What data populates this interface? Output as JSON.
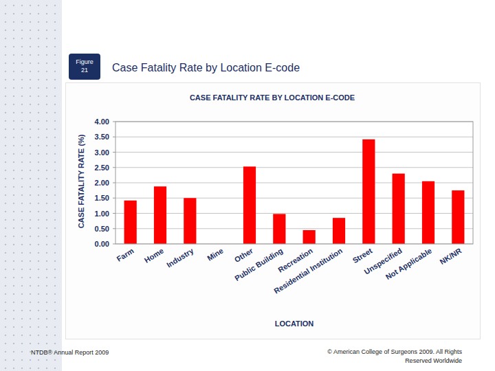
{
  "slide": {
    "figure_label": [
      "Figure",
      "21"
    ],
    "heading": "Case Fatality Rate by Location E-code",
    "footer_left": "NTDB® Annual Report 2009",
    "footer_right": "© American College of Surgeons 2009.  All Rights Reserved Worldwide"
  },
  "chart_data": {
    "type": "bar",
    "title": "CASE FATALITY RATE BY LOCATION E-CODE",
    "x_label": "LOCATION",
    "y_label": "CASE FATALITY RATE (%)",
    "categories": [
      "Farm",
      "Home",
      "Industry",
      "Mine",
      "Other",
      "Public Building",
      "Recreation",
      "Residential Institution",
      "Street",
      "Unspecified",
      "Not Applicable",
      "NK/NR"
    ],
    "values": [
      1.42,
      1.88,
      1.5,
      0,
      2.53,
      0.98,
      0.45,
      0.85,
      3.42,
      2.3,
      2.05,
      1.75
    ],
    "color": "#ff0000",
    "ylim": [
      0,
      4
    ],
    "yticks": [
      {
        "value": 0,
        "label": "0.00"
      },
      {
        "value": 0.5,
        "label": "0.50"
      },
      {
        "value": 1,
        "label": "1.00"
      },
      {
        "value": 1.5,
        "label": "1.50"
      },
      {
        "value": 2,
        "label": "2.00"
      },
      {
        "value": 2.5,
        "label": "2.50"
      },
      {
        "value": 3,
        "label": "3.00"
      },
      {
        "value": 3.5,
        "label": "3.50"
      },
      {
        "value": 4,
        "label": "4.00"
      }
    ],
    "grid": true
  }
}
